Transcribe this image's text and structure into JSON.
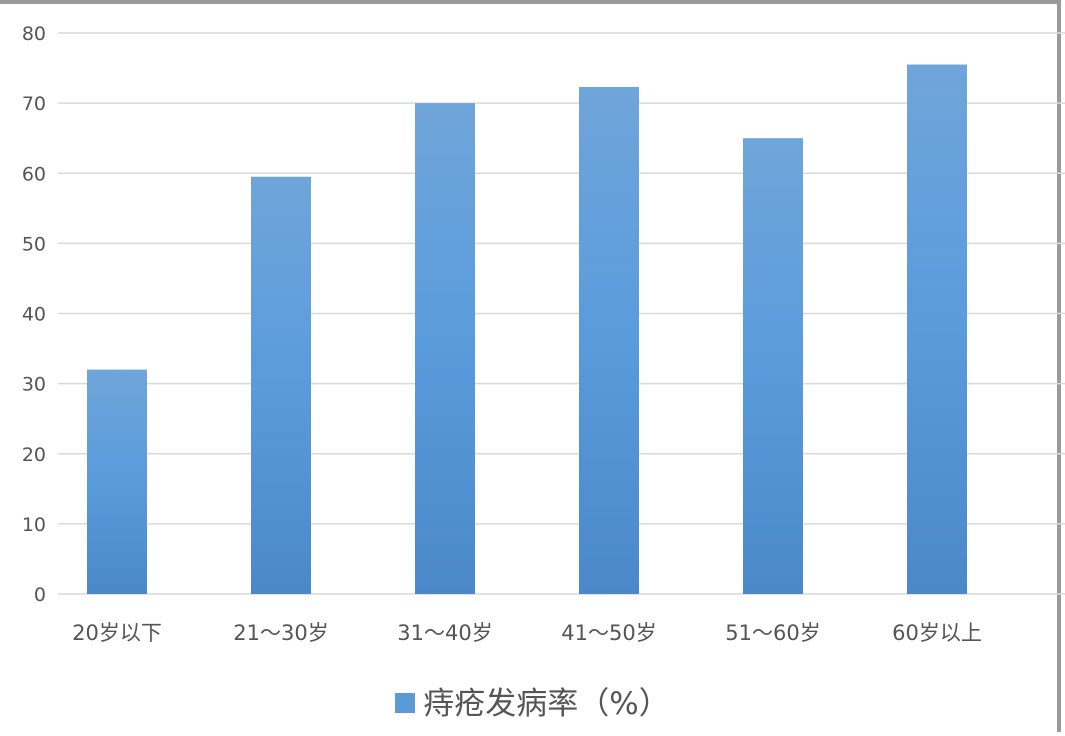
{
  "chart_data": {
    "type": "bar",
    "categories": [
      "20岁以下",
      "21～30岁",
      "31～40岁",
      "41～50岁",
      "51～60岁",
      "60岁以上"
    ],
    "series": [
      {
        "name": "痔疮发病率（%）",
        "values": [
          32,
          59.5,
          70,
          72.3,
          65,
          75.5
        ],
        "color": "#5b9bd5"
      }
    ],
    "yticks": [
      0,
      10,
      20,
      30,
      40,
      50,
      60,
      70,
      80
    ],
    "ylim": [
      0,
      80
    ],
    "grid": true,
    "legend": "bottom"
  }
}
